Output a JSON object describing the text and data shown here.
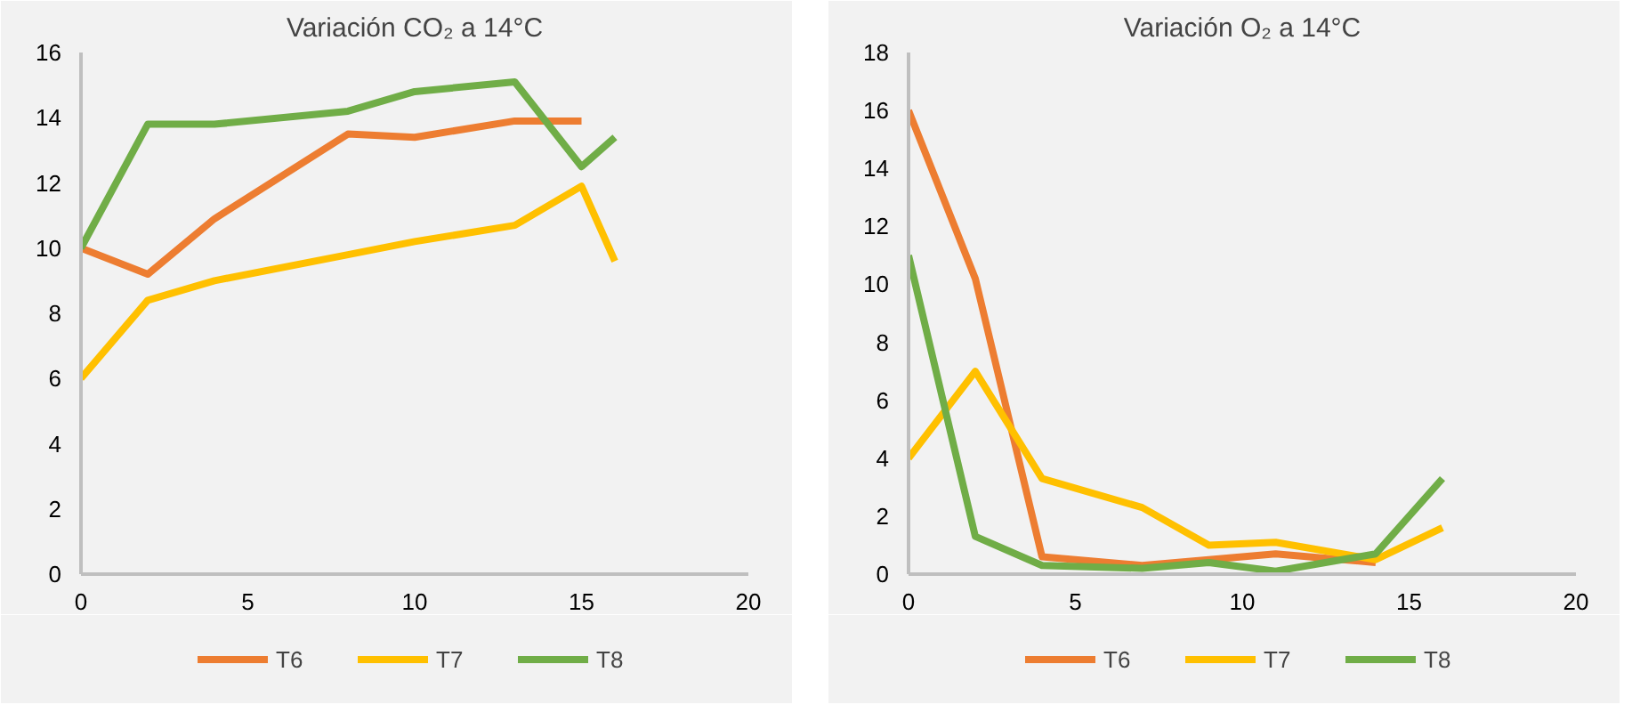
{
  "chart_data": [
    {
      "type": "line",
      "title": "Variación CO₂ a 14°C",
      "xlim": [
        0,
        20
      ],
      "xticks": [
        0,
        5,
        10,
        15,
        20
      ],
      "ylim": [
        0,
        16
      ],
      "yticks": [
        0,
        2,
        4,
        6,
        8,
        10,
        12,
        14,
        16
      ],
      "grid": false,
      "legend": "bottom",
      "marker": "none",
      "series": [
        {
          "name": "T6",
          "color": "#ed7d31",
          "x": [
            0,
            2,
            4,
            8,
            10,
            13,
            15
          ],
          "values": [
            10,
            9.2,
            10.9,
            13.5,
            13.4,
            13.9,
            13.9
          ]
        },
        {
          "name": "T7",
          "color": "#ffc000",
          "x": [
            0,
            2,
            4,
            8,
            10,
            13,
            15,
            16
          ],
          "values": [
            6,
            8.4,
            9.0,
            9.8,
            10.2,
            10.7,
            11.9,
            9.6
          ]
        },
        {
          "name": "T8",
          "color": "#70ad47",
          "x": [
            0,
            2,
            4,
            8,
            10,
            13,
            15,
            16
          ],
          "values": [
            10,
            13.8,
            13.8,
            14.2,
            14.8,
            15.1,
            12.5,
            13.4
          ]
        }
      ]
    },
    {
      "type": "line",
      "title": "Variación O₂ a 14°C",
      "xlim": [
        0,
        20
      ],
      "xticks": [
        0,
        5,
        10,
        15,
        20
      ],
      "ylim": [
        0,
        18
      ],
      "yticks": [
        0,
        2,
        4,
        6,
        8,
        10,
        12,
        14,
        16,
        18
      ],
      "grid": false,
      "legend": "bottom",
      "marker": "none",
      "series": [
        {
          "name": "T6",
          "color": "#ed7d31",
          "x": [
            0,
            2,
            4,
            7,
            9,
            11,
            14
          ],
          "values": [
            16,
            10.2,
            0.6,
            0.3,
            0.5,
            0.7,
            0.4
          ]
        },
        {
          "name": "T7",
          "color": "#ffc000",
          "x": [
            0,
            2,
            4,
            7,
            9,
            11,
            14,
            16
          ],
          "values": [
            4,
            7,
            3.3,
            2.3,
            1.0,
            1.1,
            0.5,
            1.6
          ]
        },
        {
          "name": "T8",
          "color": "#70ad47",
          "x": [
            0,
            2,
            4,
            7,
            9,
            11,
            14,
            16
          ],
          "values": [
            11,
            1.3,
            0.3,
            0.2,
            0.4,
            0.1,
            0.7,
            3.3
          ]
        }
      ]
    }
  ]
}
